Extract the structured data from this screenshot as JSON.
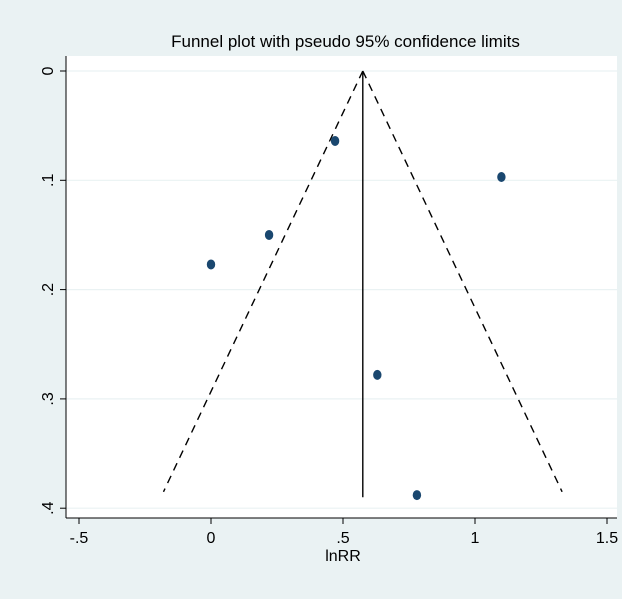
{
  "chart_data": {
    "type": "scatter",
    "title": "Funnel plot with pseudo 95% confidence limits",
    "xlabel": "lnRR",
    "ylabel": "",
    "xlim": [
      -0.5,
      1.5
    ],
    "ylim": [
      0,
      0.4
    ],
    "y_reversed": true,
    "x_ticks": [
      -0.5,
      0,
      0.5,
      1,
      1.5
    ],
    "x_tick_labels": [
      "-.5",
      "0",
      ".5",
      "1",
      "1.5"
    ],
    "y_ticks": [
      0,
      0.1,
      0.2,
      0.3,
      0.4
    ],
    "y_tick_labels": [
      "0",
      ".1",
      ".2",
      ".3",
      ".4"
    ],
    "grid": true,
    "points": [
      {
        "x": 0.47,
        "y": 0.064
      },
      {
        "x": 1.1,
        "y": 0.097
      },
      {
        "x": 0.22,
        "y": 0.15
      },
      {
        "x": 0.0,
        "y": 0.177
      },
      {
        "x": 0.63,
        "y": 0.278
      },
      {
        "x": 0.78,
        "y": 0.388
      }
    ],
    "pooled_estimate": 0.575,
    "funnel_limits": {
      "apex": {
        "x": 0.575,
        "y": 0
      },
      "left_end": {
        "x": -0.18,
        "y": 0.385
      },
      "right_end": {
        "x": 1.33,
        "y": 0.385
      }
    },
    "colors": {
      "points": "#1a476f",
      "lines": "#000000",
      "grid": "#eaf2f3",
      "plot_bg": "#ffffff",
      "outer_bg": "#eaf2f3"
    }
  }
}
